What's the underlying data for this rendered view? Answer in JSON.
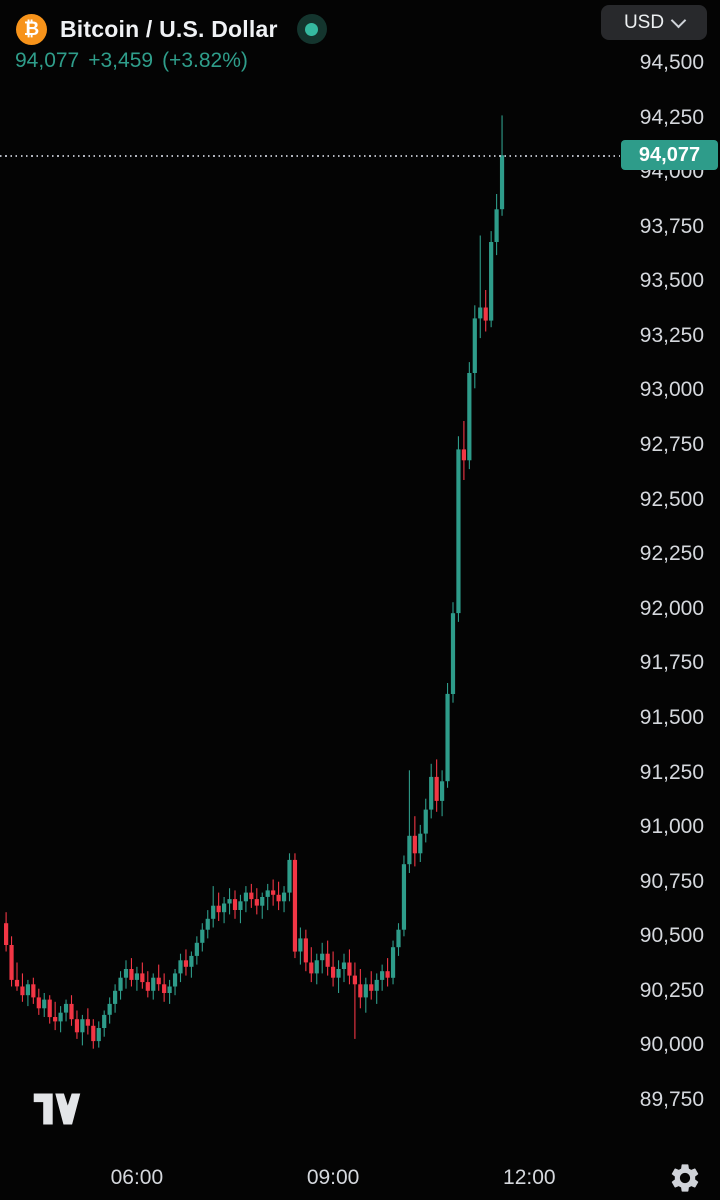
{
  "header": {
    "symbol_title": "Bitcoin / U.S. Dollar",
    "market_status": "live",
    "currency_selector_value": "USD",
    "last_price": "94,077",
    "change": "+3,459",
    "change_percent": "(+3.82%)"
  },
  "icons": {
    "bitcoin": "₿",
    "chevron_down": "chevron-down-icon",
    "status_dot": "market-status-dot-icon",
    "tradingview_logo": "tradingview-logo-icon",
    "settings_gear": "gear-icon"
  },
  "price_scale": {
    "current_label": "94,077"
  },
  "colors": {
    "background": "#040404",
    "up": "#2e9c8a",
    "down": "#f23645",
    "accent_text": "#2f9e8b",
    "axis_text": "#d5d8dd",
    "tag_bg": "#2e9c8a",
    "tag_text": "#ffffff",
    "dotted_line": "#b2b5be",
    "header_text": "#f0f2f5",
    "pill_bg": "#28292c",
    "btc_orange": "#f7931a",
    "status_dot": "#35b9a0"
  },
  "chart_data": {
    "type": "candlestick",
    "title": "Bitcoin / U.S. Dollar",
    "interval_minutes": 5,
    "current_price": 94077,
    "change": 3459,
    "change_percent": 3.82,
    "ylim": [
      89750,
      94500
    ],
    "y_ticks": [
      94500,
      94250,
      94000,
      93750,
      93500,
      93250,
      93000,
      92750,
      92500,
      92250,
      92000,
      91750,
      91500,
      91250,
      91000,
      90750,
      90500,
      90250,
      90000,
      89750
    ],
    "x_ticks": [
      {
        "label": "06:00",
        "index": 24
      },
      {
        "label": "09:00",
        "index": 60
      },
      {
        "label": "12:00",
        "index": 96
      }
    ],
    "legend_position": "none",
    "grid": false,
    "candles": [
      [
        90560,
        90610,
        90430,
        90460
      ],
      [
        90460,
        90500,
        90270,
        90300
      ],
      [
        90300,
        90380,
        90250,
        90270
      ],
      [
        90270,
        90330,
        90200,
        90230
      ],
      [
        90230,
        90300,
        90180,
        90280
      ],
      [
        90280,
        90310,
        90190,
        90220
      ],
      [
        90220,
        90260,
        90140,
        90170
      ],
      [
        90170,
        90240,
        90130,
        90210
      ],
      [
        90210,
        90230,
        90100,
        90130
      ],
      [
        90130,
        90200,
        90070,
        90110
      ],
      [
        90110,
        90180,
        90060,
        90150
      ],
      [
        90150,
        90210,
        90110,
        90190
      ],
      [
        90190,
        90230,
        90090,
        90120
      ],
      [
        90120,
        90160,
        90030,
        90060
      ],
      [
        90060,
        90140,
        90000,
        90120
      ],
      [
        90120,
        90170,
        90050,
        90090
      ],
      [
        90090,
        90120,
        89985,
        90020
      ],
      [
        90020,
        90110,
        89990,
        90080
      ],
      [
        90080,
        90160,
        90040,
        90140
      ],
      [
        90140,
        90220,
        90100,
        90190
      ],
      [
        90190,
        90280,
        90150,
        90250
      ],
      [
        90250,
        90340,
        90210,
        90310
      ],
      [
        90310,
        90390,
        90260,
        90350
      ],
      [
        90350,
        90400,
        90270,
        90300
      ],
      [
        90300,
        90360,
        90250,
        90330
      ],
      [
        90330,
        90380,
        90260,
        90290
      ],
      [
        90290,
        90340,
        90220,
        90250
      ],
      [
        90250,
        90330,
        90210,
        90310
      ],
      [
        90310,
        90370,
        90250,
        90280
      ],
      [
        90280,
        90330,
        90200,
        90240
      ],
      [
        90240,
        90300,
        90190,
        90270
      ],
      [
        90270,
        90350,
        90230,
        90330
      ],
      [
        90330,
        90420,
        90290,
        90390
      ],
      [
        90390,
        90440,
        90320,
        90360
      ],
      [
        90360,
        90430,
        90310,
        90410
      ],
      [
        90410,
        90500,
        90370,
        90470
      ],
      [
        90470,
        90560,
        90430,
        90530
      ],
      [
        90530,
        90620,
        90490,
        90580
      ],
      [
        90580,
        90730,
        90540,
        90640
      ],
      [
        90640,
        90700,
        90570,
        90610
      ],
      [
        90610,
        90680,
        90560,
        90650
      ],
      [
        90650,
        90720,
        90600,
        90670
      ],
      [
        90670,
        90710,
        90580,
        90620
      ],
      [
        90620,
        90690,
        90560,
        90660
      ],
      [
        90660,
        90730,
        90610,
        90700
      ],
      [
        90700,
        90740,
        90630,
        90670
      ],
      [
        90670,
        90720,
        90600,
        90640
      ],
      [
        90640,
        90700,
        90580,
        90680
      ],
      [
        90680,
        90740,
        90620,
        90710
      ],
      [
        90710,
        90760,
        90640,
        90690
      ],
      [
        90690,
        90750,
        90620,
        90660
      ],
      [
        90660,
        90730,
        90610,
        90700
      ],
      [
        90700,
        90880,
        90660,
        90850
      ],
      [
        90850,
        90880,
        90400,
        90430
      ],
      [
        90430,
        90540,
        90370,
        90490
      ],
      [
        90490,
        90530,
        90340,
        90380
      ],
      [
        90380,
        90450,
        90290,
        90330
      ],
      [
        90330,
        90420,
        90280,
        90390
      ],
      [
        90390,
        90470,
        90330,
        90420
      ],
      [
        90420,
        90480,
        90320,
        90360
      ],
      [
        90360,
        90430,
        90270,
        90310
      ],
      [
        90310,
        90390,
        90240,
        90350
      ],
      [
        90350,
        90420,
        90290,
        90380
      ],
      [
        90380,
        90440,
        90280,
        90320
      ],
      [
        90320,
        90380,
        90030,
        90280
      ],
      [
        90280,
        90350,
        90170,
        90220
      ],
      [
        90220,
        90310,
        90150,
        90280
      ],
      [
        90280,
        90340,
        90210,
        90250
      ],
      [
        90250,
        90330,
        90190,
        90300
      ],
      [
        90300,
        90370,
        90250,
        90340
      ],
      [
        90340,
        90400,
        90270,
        90310
      ],
      [
        90310,
        90480,
        90280,
        90450
      ],
      [
        90450,
        90560,
        90410,
        90530
      ],
      [
        90530,
        90870,
        90500,
        90830
      ],
      [
        90830,
        91260,
        90790,
        90960
      ],
      [
        90960,
        91050,
        90820,
        90880
      ],
      [
        90880,
        91010,
        90840,
        90970
      ],
      [
        90970,
        91130,
        90930,
        91080
      ],
      [
        91080,
        91290,
        91040,
        91230
      ],
      [
        91230,
        91310,
        91070,
        91120
      ],
      [
        91120,
        91260,
        91050,
        91210
      ],
      [
        91210,
        91660,
        91180,
        91610
      ],
      [
        91610,
        92030,
        91570,
        91980
      ],
      [
        91980,
        92790,
        91940,
        92730
      ],
      [
        92730,
        92860,
        92590,
        92680
      ],
      [
        92680,
        93130,
        92640,
        93080
      ],
      [
        93080,
        93390,
        93010,
        93330
      ],
      [
        93330,
        93710,
        93240,
        93380
      ],
      [
        93380,
        93460,
        93270,
        93320
      ],
      [
        93320,
        93730,
        93290,
        93680
      ],
      [
        93680,
        93900,
        93620,
        93830
      ],
      [
        93830,
        94260,
        93800,
        94077
      ]
    ]
  }
}
